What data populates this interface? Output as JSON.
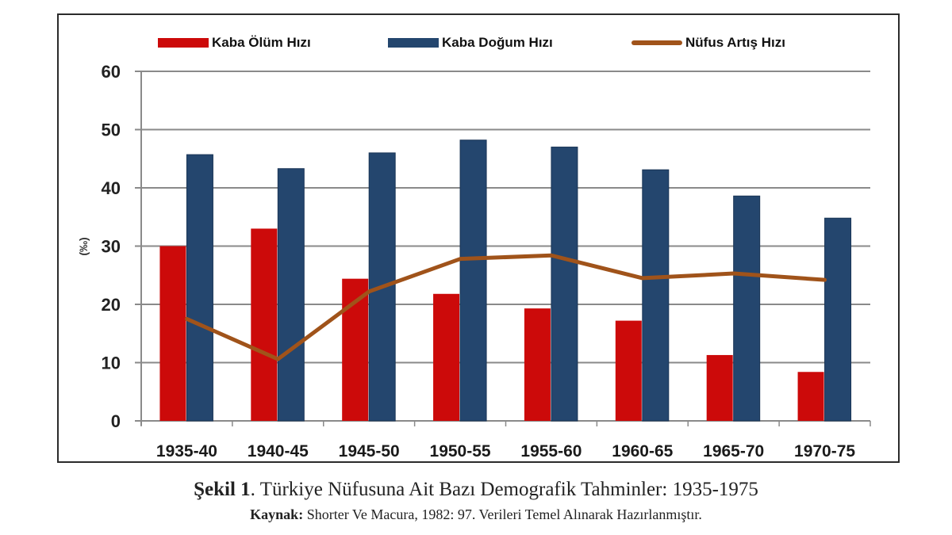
{
  "chart_data": {
    "type": "bar",
    "title": "",
    "xlabel": "",
    "ylabel": "(‰)",
    "ylim": [
      0,
      60
    ],
    "yticks": [
      0,
      10,
      20,
      30,
      40,
      50,
      60
    ],
    "grid": true,
    "legend_position": "top",
    "categories": [
      "1935-40",
      "1940-45",
      "1945-50",
      "1950-55",
      "1955-60",
      "1960-65",
      "1965-70",
      "1970-75"
    ],
    "series": [
      {
        "name": "Kaba Ölüm Hızı",
        "type": "bar",
        "color": "#cc0a0a",
        "values": [
          30.0,
          33.0,
          24.4,
          21.8,
          19.3,
          17.2,
          11.3,
          8.4
        ]
      },
      {
        "name": "Kaba Doğum Hızı",
        "type": "bar",
        "color": "#24466e",
        "values": [
          45.7,
          43.3,
          46.0,
          48.2,
          47.0,
          43.1,
          38.6,
          34.8
        ]
      },
      {
        "name": "Nüfus Artış Hızı",
        "type": "line",
        "color": "#a0531a",
        "values": [
          17.5,
          10.6,
          22.2,
          27.8,
          28.4,
          24.5,
          25.3,
          24.2
        ]
      }
    ]
  },
  "legend": {
    "death_rate": "Kaba Ölüm Hızı",
    "birth_rate": "Kaba Doğum Hızı",
    "growth_rate": "Nüfus Artış Hızı"
  },
  "caption": {
    "figure_label": "Şekil 1",
    "figure_title": ". Türkiye Nüfusuna Ait Bazı Demografik Tahminler: 1935-1975",
    "source_label": "Kaynak:",
    "source_text": " Shorter Ve Macura, 1982: 97. Verileri Temel Alınarak Hazırlanmıştır."
  },
  "colors": {
    "death": "#cc0a0a",
    "birth": "#24466e",
    "growth": "#a0531a",
    "grid": "#8a8a8a"
  }
}
